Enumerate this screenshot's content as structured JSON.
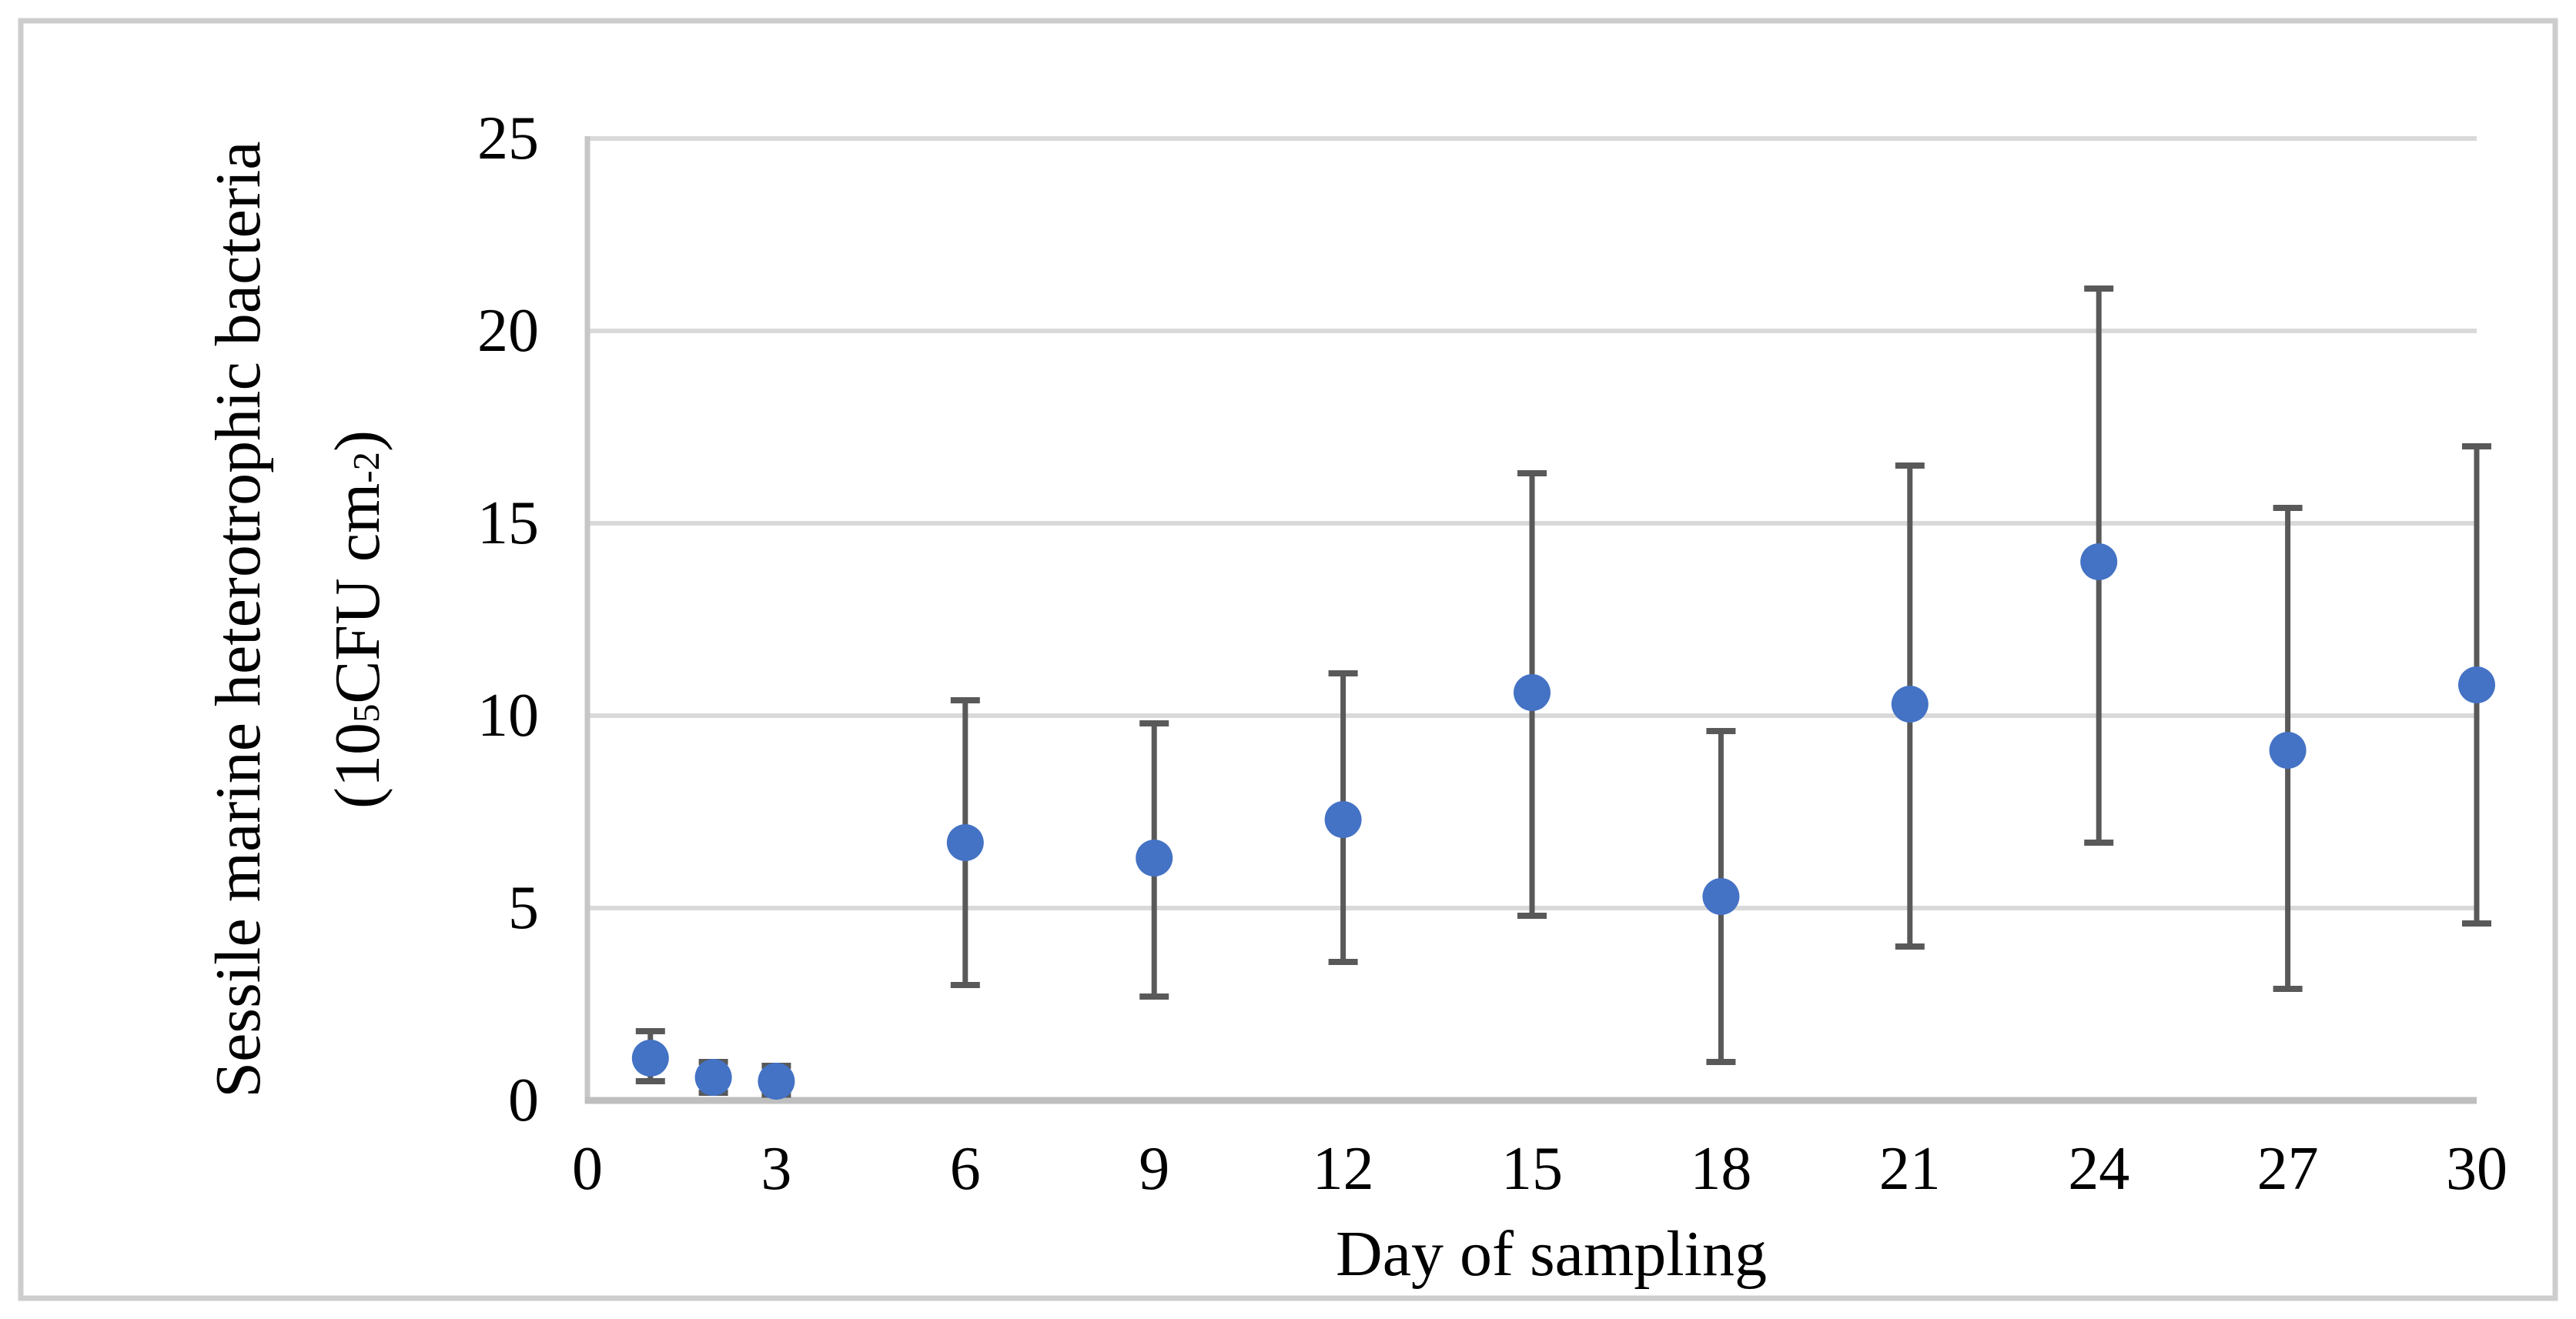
{
  "figure": {
    "background": "#FFFFFF",
    "border_color": "#CDCDCD"
  },
  "chart_data": {
    "type": "scatter",
    "title": "",
    "xlabel": "Day of sampling",
    "ylabel_line1": "Sessile marine heterotrophic bacteria",
    "ylabel_line2_parts": {
      "open": "(10",
      "sup1": "5",
      "mid": "CFU cm",
      "sup2": "-2",
      "close": ")"
    },
    "x_ticks": [
      0,
      3,
      6,
      9,
      12,
      15,
      18,
      21,
      24,
      27,
      30
    ],
    "y_ticks": [
      0,
      5,
      10,
      15,
      20,
      25
    ],
    "xlim": [
      0,
      30
    ],
    "ylim": [
      0,
      25
    ],
    "grid": "horizontal-only",
    "legend": "none",
    "series": [
      {
        "name": "Sessile marine heterotrophic bacteria",
        "marker": "circle",
        "marker_color": "#4472C4",
        "error_bar_color": "#595959",
        "points": [
          {
            "day": 1,
            "value": 1.1,
            "lower": 0.5,
            "upper": 1.8
          },
          {
            "day": 2,
            "value": 0.6,
            "lower": 0.2,
            "upper": 1.0
          },
          {
            "day": 3,
            "value": 0.5,
            "lower": 0.15,
            "upper": 0.9
          },
          {
            "day": 6,
            "value": 6.7,
            "lower": 3.0,
            "upper": 10.4
          },
          {
            "day": 9,
            "value": 6.3,
            "lower": 2.7,
            "upper": 9.8
          },
          {
            "day": 12,
            "value": 7.3,
            "lower": 3.6,
            "upper": 11.1
          },
          {
            "day": 15,
            "value": 10.6,
            "lower": 4.8,
            "upper": 16.3
          },
          {
            "day": 18,
            "value": 5.3,
            "lower": 1.0,
            "upper": 9.6
          },
          {
            "day": 21,
            "value": 10.3,
            "lower": 4.0,
            "upper": 16.5
          },
          {
            "day": 24,
            "value": 14.0,
            "lower": 6.7,
            "upper": 21.1
          },
          {
            "day": 27,
            "value": 9.1,
            "lower": 2.9,
            "upper": 15.4
          },
          {
            "day": 30,
            "value": 10.8,
            "lower": 4.6,
            "upper": 17.0
          }
        ]
      }
    ],
    "colors": {
      "gridline": "#D9D9D9",
      "x_axis": "#BFBFBF",
      "y_axis": "#C6C6C6",
      "tick_text": "#000000"
    }
  }
}
